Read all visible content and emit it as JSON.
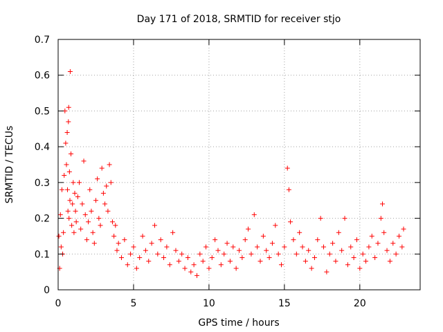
{
  "chart_data": {
    "type": "scatter",
    "title": "Day 171 of 2018, SRMTID for receiver stjo",
    "xlabel": "GPS time / hours",
    "ylabel": "SRMTID / TECUs",
    "xlim": [
      0,
      24
    ],
    "ylim": [
      0,
      0.7
    ],
    "xticks": [
      0,
      5,
      10,
      15,
      20
    ],
    "yticks": [
      0,
      0.1,
      0.2,
      0.3,
      0.4,
      0.5,
      0.6,
      0.7
    ],
    "xtick_labels": [
      "0",
      "5",
      "10",
      "15",
      "20"
    ],
    "ytick_labels": [
      "0",
      "0.1",
      "0.2",
      "0.3",
      "0.4",
      "0.5",
      "0.6",
      "0.7"
    ],
    "grid": true,
    "marker": "+",
    "series_color": "#ff0000",
    "series": [
      {
        "name": "SRMTID",
        "x": [
          0.05,
          0.1,
          0.15,
          0.2,
          0.25,
          0.3,
          0.35,
          0.4,
          0.45,
          0.5,
          0.55,
          0.6,
          0.62,
          0.65,
          0.68,
          0.7,
          0.72,
          0.75,
          0.78,
          0.8,
          0.85,
          0.9,
          0.95,
          1.0,
          1.05,
          1.1,
          1.15,
          1.2,
          1.3,
          1.4,
          1.5,
          1.6,
          1.7,
          1.8,
          1.9,
          2.0,
          2.1,
          2.2,
          2.3,
          2.4,
          2.5,
          2.6,
          2.7,
          2.8,
          2.9,
          3.0,
          3.1,
          3.2,
          3.3,
          3.4,
          3.5,
          3.6,
          3.7,
          3.8,
          3.9,
          4.0,
          4.2,
          4.4,
          4.6,
          4.8,
          5.0,
          5.2,
          5.4,
          5.6,
          5.8,
          6.0,
          6.2,
          6.4,
          6.6,
          6.8,
          7.0,
          7.2,
          7.4,
          7.6,
          7.8,
          8.0,
          8.2,
          8.4,
          8.6,
          8.8,
          9.0,
          9.2,
          9.4,
          9.6,
          9.8,
          10.0,
          10.2,
          10.4,
          10.6,
          10.8,
          11.0,
          11.2,
          11.4,
          11.6,
          11.8,
          12.0,
          12.2,
          12.4,
          12.6,
          12.8,
          13.0,
          13.2,
          13.4,
          13.6,
          13.8,
          14.0,
          14.2,
          14.4,
          14.6,
          14.8,
          15.0,
          15.2,
          15.3,
          15.4,
          15.6,
          15.8,
          16.0,
          16.2,
          16.4,
          16.6,
          16.8,
          17.0,
          17.2,
          17.4,
          17.6,
          17.8,
          18.0,
          18.2,
          18.4,
          18.6,
          18.8,
          19.0,
          19.2,
          19.4,
          19.6,
          19.8,
          20.0,
          20.2,
          20.4,
          20.6,
          20.8,
          21.0,
          21.2,
          21.4,
          21.5,
          21.6,
          21.8,
          22.0,
          22.2,
          22.4,
          22.6,
          22.8,
          22.9
        ],
        "y": [
          0.15,
          0.06,
          0.21,
          0.12,
          0.28,
          0.1,
          0.16,
          0.32,
          0.5,
          0.41,
          0.35,
          0.44,
          0.28,
          0.22,
          0.47,
          0.51,
          0.2,
          0.33,
          0.25,
          0.61,
          0.38,
          0.18,
          0.24,
          0.3,
          0.16,
          0.27,
          0.22,
          0.19,
          0.26,
          0.3,
          0.17,
          0.24,
          0.36,
          0.21,
          0.14,
          0.19,
          0.28,
          0.22,
          0.16,
          0.13,
          0.25,
          0.31,
          0.2,
          0.18,
          0.34,
          0.27,
          0.24,
          0.29,
          0.22,
          0.35,
          0.3,
          0.19,
          0.15,
          0.18,
          0.11,
          0.13,
          0.09,
          0.14,
          0.07,
          0.1,
          0.12,
          0.06,
          0.09,
          0.15,
          0.11,
          0.08,
          0.13,
          0.18,
          0.1,
          0.14,
          0.09,
          0.12,
          0.07,
          0.16,
          0.11,
          0.08,
          0.1,
          0.06,
          0.09,
          0.05,
          0.07,
          0.04,
          0.1,
          0.08,
          0.12,
          0.06,
          0.09,
          0.14,
          0.11,
          0.07,
          0.1,
          0.13,
          0.08,
          0.12,
          0.06,
          0.11,
          0.09,
          0.14,
          0.17,
          0.1,
          0.21,
          0.12,
          0.08,
          0.15,
          0.11,
          0.09,
          0.13,
          0.18,
          0.1,
          0.07,
          0.12,
          0.34,
          0.28,
          0.19,
          0.14,
          0.1,
          0.16,
          0.12,
          0.08,
          0.11,
          0.06,
          0.09,
          0.14,
          0.2,
          0.12,
          0.05,
          0.1,
          0.13,
          0.08,
          0.16,
          0.11,
          0.2,
          0.07,
          0.12,
          0.09,
          0.14,
          0.06,
          0.1,
          0.08,
          0.12,
          0.15,
          0.09,
          0.13,
          0.2,
          0.24,
          0.16,
          0.11,
          0.08,
          0.13,
          0.1,
          0.15,
          0.12,
          0.17
        ]
      }
    ]
  }
}
